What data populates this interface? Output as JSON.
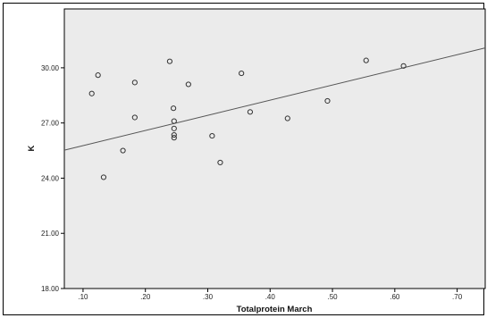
{
  "chart_data": {
    "type": "scatter",
    "title": "",
    "xlabel": "Totalprotein March",
    "ylabel": "K",
    "xlim": [
      0.07,
      0.745
    ],
    "ylim": [
      18.0,
      33.2
    ],
    "x_ticks": [
      {
        "value": 0.1,
        "label": ".10"
      },
      {
        "value": 0.2,
        "label": ".20"
      },
      {
        "value": 0.3,
        "label": ".30"
      },
      {
        "value": 0.4,
        "label": ".40"
      },
      {
        "value": 0.5,
        "label": ".50"
      },
      {
        "value": 0.6,
        "label": ".60"
      },
      {
        "value": 0.7,
        "label": ".70"
      }
    ],
    "y_ticks": [
      {
        "value": 18.0,
        "label": "18.00"
      },
      {
        "value": 21.0,
        "label": "21.00"
      },
      {
        "value": 24.0,
        "label": "24.00"
      },
      {
        "value": 27.0,
        "label": "27.00"
      },
      {
        "value": 30.0,
        "label": "30.00"
      }
    ],
    "points": [
      {
        "x": 0.114,
        "y": 28.6
      },
      {
        "x": 0.124,
        "y": 29.6
      },
      {
        "x": 0.133,
        "y": 24.05
      },
      {
        "x": 0.164,
        "y": 25.5
      },
      {
        "x": 0.183,
        "y": 29.2
      },
      {
        "x": 0.183,
        "y": 27.3
      },
      {
        "x": 0.239,
        "y": 30.35
      },
      {
        "x": 0.245,
        "y": 27.8
      },
      {
        "x": 0.246,
        "y": 27.1
      },
      {
        "x": 0.246,
        "y": 26.7
      },
      {
        "x": 0.246,
        "y": 26.35
      },
      {
        "x": 0.246,
        "y": 26.2
      },
      {
        "x": 0.269,
        "y": 29.1
      },
      {
        "x": 0.307,
        "y": 26.3
      },
      {
        "x": 0.32,
        "y": 24.85
      },
      {
        "x": 0.354,
        "y": 29.7
      },
      {
        "x": 0.368,
        "y": 27.6
      },
      {
        "x": 0.428,
        "y": 27.25
      },
      {
        "x": 0.492,
        "y": 28.2
      },
      {
        "x": 0.554,
        "y": 30.4
      },
      {
        "x": 0.614,
        "y": 30.1
      }
    ],
    "fit_line": {
      "x": [
        0.07,
        0.745
      ],
      "y": [
        25.52,
        31.08
      ]
    },
    "colors": {
      "plot_background": "#ebebeb",
      "marker_stroke": "#333333",
      "fit_line": "#555555",
      "frame": "#000000"
    }
  }
}
